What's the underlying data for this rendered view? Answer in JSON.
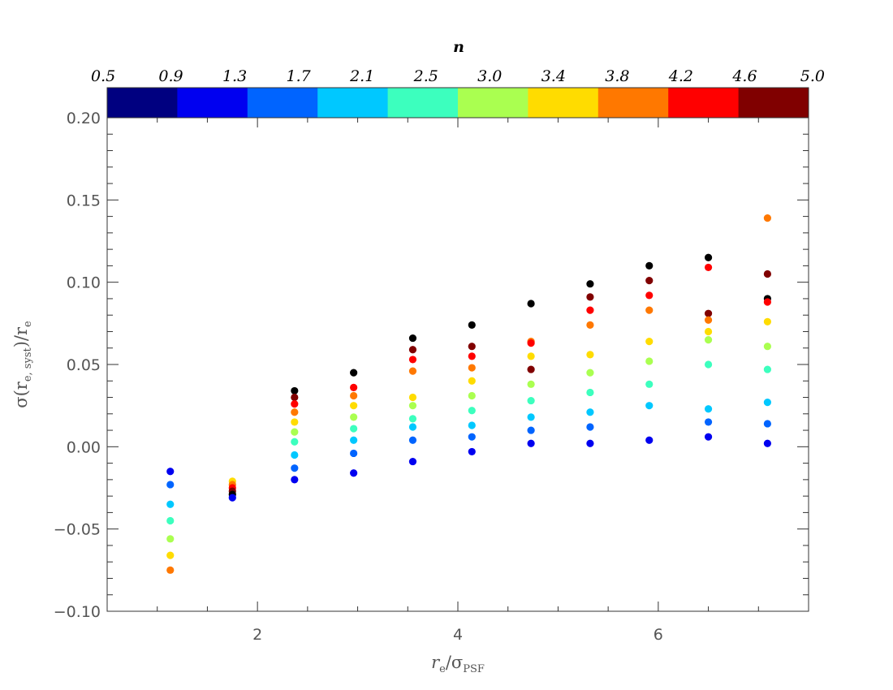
{
  "chart_data": {
    "type": "scatter",
    "xlabel": {
      "main": "r",
      "sub": "e",
      "sep": "/σ",
      "sub2": "PSF"
    },
    "ylabel": {
      "pre": "σ(r",
      "sub": "e, syst",
      "post": ")/r",
      "sub2": "e"
    },
    "xlim": [
      0.5,
      7.5
    ],
    "ylim": [
      -0.1,
      0.2
    ],
    "x_ticks": [
      2,
      4,
      6
    ],
    "y_ticks": [
      -0.1,
      -0.05,
      0.0,
      0.05,
      0.1,
      0.15,
      0.2
    ],
    "y_tick_labels": [
      "−0.10",
      "−0.05",
      "0.00",
      "0.05",
      "0.10",
      "0.15",
      "0.20"
    ],
    "grid": false,
    "colorbar": {
      "title": "n",
      "labels": [
        "0.5",
        "0.9",
        "1.3",
        "1.7",
        "2.1",
        "2.5",
        "3.0",
        "3.4",
        "3.8",
        "4.2",
        "4.6",
        "5.0"
      ],
      "colors": [
        "#000080",
        "#0000f0",
        "#0064ff",
        "#00c8ff",
        "#3cffbe",
        "#aaff50",
        "#ffdc00",
        "#ff7800",
        "#ff0000",
        "#800000"
      ]
    },
    "points": [
      {
        "x": 1.13,
        "y": -0.015,
        "c": "#0000f0"
      },
      {
        "x": 1.13,
        "y": -0.023,
        "c": "#0064ff"
      },
      {
        "x": 1.13,
        "y": -0.035,
        "c": "#00c8ff"
      },
      {
        "x": 1.13,
        "y": -0.045,
        "c": "#3cffbe"
      },
      {
        "x": 1.13,
        "y": -0.056,
        "c": "#aaff50"
      },
      {
        "x": 1.13,
        "y": -0.066,
        "c": "#ffdc00"
      },
      {
        "x": 1.13,
        "y": -0.075,
        "c": "#ff7800"
      },
      {
        "x": 1.75,
        "y": -0.021,
        "c": "#ffdc00"
      },
      {
        "x": 1.75,
        "y": -0.023,
        "c": "#ff7800"
      },
      {
        "x": 1.75,
        "y": -0.025,
        "c": "#ff0000"
      },
      {
        "x": 1.75,
        "y": -0.027,
        "c": "#800000"
      },
      {
        "x": 1.75,
        "y": -0.029,
        "c": "#000000"
      },
      {
        "x": 1.75,
        "y": -0.031,
        "c": "#0000f0"
      },
      {
        "x": 2.37,
        "y": 0.034,
        "c": "#000000"
      },
      {
        "x": 2.37,
        "y": 0.03,
        "c": "#800000"
      },
      {
        "x": 2.37,
        "y": 0.026,
        "c": "#ff0000"
      },
      {
        "x": 2.37,
        "y": 0.021,
        "c": "#ff7800"
      },
      {
        "x": 2.37,
        "y": 0.015,
        "c": "#ffdc00"
      },
      {
        "x": 2.37,
        "y": 0.009,
        "c": "#aaff50"
      },
      {
        "x": 2.37,
        "y": 0.003,
        "c": "#3cffbe"
      },
      {
        "x": 2.37,
        "y": -0.005,
        "c": "#00c8ff"
      },
      {
        "x": 2.37,
        "y": -0.013,
        "c": "#0064ff"
      },
      {
        "x": 2.37,
        "y": -0.02,
        "c": "#0000f0"
      },
      {
        "x": 2.96,
        "y": 0.045,
        "c": "#000000"
      },
      {
        "x": 2.96,
        "y": 0.036,
        "c": "#ff0000"
      },
      {
        "x": 2.96,
        "y": 0.031,
        "c": "#ff7800"
      },
      {
        "x": 2.96,
        "y": 0.025,
        "c": "#ffdc00"
      },
      {
        "x": 2.96,
        "y": 0.018,
        "c": "#aaff50"
      },
      {
        "x": 2.96,
        "y": 0.011,
        "c": "#3cffbe"
      },
      {
        "x": 2.96,
        "y": 0.004,
        "c": "#00c8ff"
      },
      {
        "x": 2.96,
        "y": -0.004,
        "c": "#0064ff"
      },
      {
        "x": 2.96,
        "y": -0.016,
        "c": "#0000f0"
      },
      {
        "x": 3.55,
        "y": 0.066,
        "c": "#000000"
      },
      {
        "x": 3.55,
        "y": 0.059,
        "c": "#800000"
      },
      {
        "x": 3.55,
        "y": 0.053,
        "c": "#ff0000"
      },
      {
        "x": 3.55,
        "y": 0.046,
        "c": "#ff7800"
      },
      {
        "x": 3.55,
        "y": 0.03,
        "c": "#ffdc00"
      },
      {
        "x": 3.55,
        "y": 0.025,
        "c": "#aaff50"
      },
      {
        "x": 3.55,
        "y": 0.017,
        "c": "#3cffbe"
      },
      {
        "x": 3.55,
        "y": 0.012,
        "c": "#00c8ff"
      },
      {
        "x": 3.55,
        "y": 0.004,
        "c": "#0064ff"
      },
      {
        "x": 3.55,
        "y": -0.009,
        "c": "#0000f0"
      },
      {
        "x": 4.14,
        "y": 0.074,
        "c": "#000000"
      },
      {
        "x": 4.14,
        "y": 0.061,
        "c": "#800000"
      },
      {
        "x": 4.14,
        "y": 0.055,
        "c": "#ff0000"
      },
      {
        "x": 4.14,
        "y": 0.048,
        "c": "#ff7800"
      },
      {
        "x": 4.14,
        "y": 0.04,
        "c": "#ffdc00"
      },
      {
        "x": 4.14,
        "y": 0.031,
        "c": "#aaff50"
      },
      {
        "x": 4.14,
        "y": 0.022,
        "c": "#3cffbe"
      },
      {
        "x": 4.14,
        "y": 0.013,
        "c": "#00c8ff"
      },
      {
        "x": 4.14,
        "y": 0.006,
        "c": "#0064ff"
      },
      {
        "x": 4.14,
        "y": -0.003,
        "c": "#0000f0"
      },
      {
        "x": 4.73,
        "y": 0.087,
        "c": "#000000"
      },
      {
        "x": 4.73,
        "y": 0.064,
        "c": "#ff7800"
      },
      {
        "x": 4.73,
        "y": 0.063,
        "c": "#ff0000"
      },
      {
        "x": 4.73,
        "y": 0.055,
        "c": "#ffdc00"
      },
      {
        "x": 4.73,
        "y": 0.047,
        "c": "#800000"
      },
      {
        "x": 4.73,
        "y": 0.038,
        "c": "#aaff50"
      },
      {
        "x": 4.73,
        "y": 0.028,
        "c": "#3cffbe"
      },
      {
        "x": 4.73,
        "y": 0.018,
        "c": "#00c8ff"
      },
      {
        "x": 4.73,
        "y": 0.01,
        "c": "#0064ff"
      },
      {
        "x": 4.73,
        "y": 0.002,
        "c": "#0000f0"
      },
      {
        "x": 5.32,
        "y": 0.099,
        "c": "#000000"
      },
      {
        "x": 5.32,
        "y": 0.091,
        "c": "#800000"
      },
      {
        "x": 5.32,
        "y": 0.083,
        "c": "#ff0000"
      },
      {
        "x": 5.32,
        "y": 0.074,
        "c": "#ff7800"
      },
      {
        "x": 5.32,
        "y": 0.056,
        "c": "#ffdc00"
      },
      {
        "x": 5.32,
        "y": 0.045,
        "c": "#aaff50"
      },
      {
        "x": 5.32,
        "y": 0.033,
        "c": "#3cffbe"
      },
      {
        "x": 5.32,
        "y": 0.021,
        "c": "#00c8ff"
      },
      {
        "x": 5.32,
        "y": 0.012,
        "c": "#0064ff"
      },
      {
        "x": 5.32,
        "y": 0.002,
        "c": "#0000f0"
      },
      {
        "x": 5.91,
        "y": 0.11,
        "c": "#000000"
      },
      {
        "x": 5.91,
        "y": 0.101,
        "c": "#800000"
      },
      {
        "x": 5.91,
        "y": 0.092,
        "c": "#ff0000"
      },
      {
        "x": 5.91,
        "y": 0.083,
        "c": "#ff7800"
      },
      {
        "x": 5.91,
        "y": 0.064,
        "c": "#ffdc00"
      },
      {
        "x": 5.91,
        "y": 0.052,
        "c": "#aaff50"
      },
      {
        "x": 5.91,
        "y": 0.038,
        "c": "#3cffbe"
      },
      {
        "x": 5.91,
        "y": 0.025,
        "c": "#00c8ff"
      },
      {
        "x": 5.91,
        "y": 0.004,
        "c": "#0000f0"
      },
      {
        "x": 6.5,
        "y": 0.115,
        "c": "#000000"
      },
      {
        "x": 6.5,
        "y": 0.109,
        "c": "#ff0000"
      },
      {
        "x": 6.5,
        "y": 0.081,
        "c": "#800000"
      },
      {
        "x": 6.5,
        "y": 0.077,
        "c": "#ff7800"
      },
      {
        "x": 6.5,
        "y": 0.07,
        "c": "#ffdc00"
      },
      {
        "x": 6.5,
        "y": 0.065,
        "c": "#aaff50"
      },
      {
        "x": 6.5,
        "y": 0.05,
        "c": "#3cffbe"
      },
      {
        "x": 6.5,
        "y": 0.023,
        "c": "#00c8ff"
      },
      {
        "x": 6.5,
        "y": 0.015,
        "c": "#0064ff"
      },
      {
        "x": 6.5,
        "y": 0.006,
        "c": "#0000f0"
      },
      {
        "x": 7.09,
        "y": 0.139,
        "c": "#ff7800"
      },
      {
        "x": 7.09,
        "y": 0.105,
        "c": "#800000"
      },
      {
        "x": 7.09,
        "y": 0.09,
        "c": "#000000"
      },
      {
        "x": 7.09,
        "y": 0.088,
        "c": "#ff0000"
      },
      {
        "x": 7.09,
        "y": 0.076,
        "c": "#ffdc00"
      },
      {
        "x": 7.09,
        "y": 0.061,
        "c": "#aaff50"
      },
      {
        "x": 7.09,
        "y": 0.047,
        "c": "#3cffbe"
      },
      {
        "x": 7.09,
        "y": 0.027,
        "c": "#00c8ff"
      },
      {
        "x": 7.09,
        "y": 0.014,
        "c": "#0064ff"
      },
      {
        "x": 7.09,
        "y": 0.002,
        "c": "#0000f0"
      }
    ]
  }
}
